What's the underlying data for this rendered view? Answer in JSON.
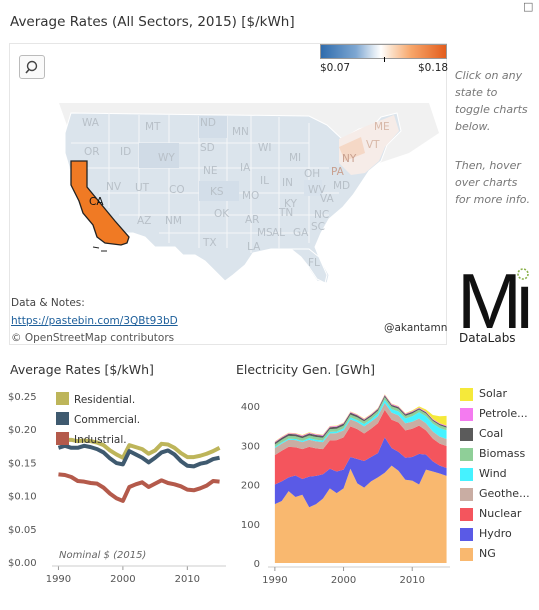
{
  "map": {
    "title": "Average Rates (All Sectors, 2015) [$/kWh]",
    "corner_mark": "□",
    "search_icon": "search-icon",
    "legend": {
      "min_label": "$0.07",
      "max_label": "$0.18",
      "low_color": "#2f6cad",
      "high_color": "#e35d1c"
    },
    "selected_state": "CA",
    "selected_color": "#f07a24",
    "states": [
      "WA",
      "MT",
      "ND",
      "MN",
      "ME",
      "OR",
      "ID",
      "SD",
      "WI",
      "VT",
      "WY",
      "NY",
      "NE",
      "IA",
      "MI",
      "PA",
      "CA",
      "NV",
      "UT",
      "CO",
      "IL",
      "IN",
      "OH",
      "MD",
      "KS",
      "MO",
      "WV",
      "VA",
      "KY",
      "AZ",
      "NM",
      "OK",
      "TN",
      "NC",
      "AR",
      "TX",
      "MS",
      "AL",
      "GA",
      "SC",
      "LA",
      "FL"
    ],
    "data_notes_label": "Data & Notes:",
    "data_link": "https://pastebin.com/3QBt93bD",
    "osm_credit": "© OpenStreetMap contributors",
    "handle": "@akantamn"
  },
  "sidebar": {
    "line1": [
      "Click on any",
      "state to",
      "toggle charts",
      "below."
    ],
    "line2": [
      "Then, hover",
      "over charts",
      "for more info."
    ]
  },
  "logo": {
    "main": "Mi",
    "sub": "DataLabs"
  },
  "chart_data": [
    {
      "type": "line",
      "title": "Average Rates [$/kWh]",
      "annotation": "Nominal $ (2015)",
      "x": [
        1990,
        1991,
        1992,
        1993,
        1994,
        1995,
        1996,
        1997,
        1998,
        1999,
        2000,
        2001,
        2002,
        2003,
        2004,
        2005,
        2006,
        2007,
        2008,
        2009,
        2010,
        2011,
        2012,
        2013,
        2014,
        2015
      ],
      "ylim": [
        0,
        0.25
      ],
      "yticks": [
        "$0.25",
        "$0.20",
        "$0.15",
        "$0.10",
        "$0.05",
        "$0.00"
      ],
      "yticks_values": [
        0.25,
        0.2,
        0.15,
        0.1,
        0.05,
        0.0
      ],
      "xticks": [
        1990,
        2000,
        2010
      ],
      "series": [
        {
          "name": "Residential.",
          "color": "#bdb55a",
          "values": [
            0.182,
            0.184,
            0.184,
            0.182,
            0.183,
            0.182,
            0.18,
            0.176,
            0.168,
            0.162,
            0.157,
            0.176,
            0.173,
            0.17,
            0.163,
            0.168,
            0.178,
            0.177,
            0.172,
            0.164,
            0.158,
            0.158,
            0.16,
            0.163,
            0.167,
            0.172
          ]
        },
        {
          "name": "Commercial.",
          "color": "#3f5a6f",
          "values": [
            0.172,
            0.175,
            0.172,
            0.172,
            0.175,
            0.173,
            0.17,
            0.165,
            0.156,
            0.149,
            0.147,
            0.167,
            0.162,
            0.157,
            0.15,
            0.157,
            0.165,
            0.168,
            0.162,
            0.152,
            0.145,
            0.144,
            0.148,
            0.15,
            0.155,
            0.157
          ]
        },
        {
          "name": "Industrial.",
          "color": "#b45a4b",
          "values": [
            0.132,
            0.131,
            0.128,
            0.122,
            0.121,
            0.119,
            0.118,
            0.112,
            0.103,
            0.096,
            0.092,
            0.113,
            0.117,
            0.12,
            0.113,
            0.118,
            0.123,
            0.119,
            0.117,
            0.114,
            0.109,
            0.108,
            0.111,
            0.115,
            0.122,
            0.121
          ]
        }
      ]
    },
    {
      "type": "area",
      "stacked": true,
      "title": "Electricity Gen. [GWh]",
      "x": [
        1990,
        1991,
        1992,
        1993,
        1994,
        1995,
        1996,
        1997,
        1998,
        1999,
        2000,
        2001,
        2002,
        2003,
        2004,
        2005,
        2006,
        2007,
        2008,
        2009,
        2010,
        2011,
        2012,
        2013,
        2014,
        2015
      ],
      "ylim": [
        0,
        420
      ],
      "yticks": [
        0,
        100,
        200,
        300,
        400
      ],
      "xticks": [
        1990,
        2000,
        2010
      ],
      "series": [
        {
          "name": "NG",
          "color": "#f9b86f",
          "values": [
            150,
            158,
            183,
            168,
            174,
            142,
            150,
            164,
            190,
            178,
            190,
            240,
            203,
            192,
            208,
            218,
            230,
            248,
            235,
            212,
            210,
            200,
            238,
            233,
            228,
            222
          ]
        },
        {
          "name": "Hydro",
          "color": "#5a5ae6",
          "values": [
            50,
            50,
            35,
            55,
            40,
            78,
            72,
            62,
            50,
            55,
            48,
            30,
            62,
            68,
            62,
            62,
            90,
            45,
            48,
            56,
            60,
            78,
            38,
            26,
            20,
            20
          ]
        },
        {
          "name": "Nuclear",
          "color": "#f4555d",
          "values": [
            75,
            78,
            78,
            72,
            76,
            76,
            70,
            64,
            72,
            80,
            82,
            78,
            76,
            70,
            72,
            76,
            70,
            72,
            75,
            70,
            72,
            72,
            62,
            58,
            56,
            56
          ]
        },
        {
          "name": "Geothe...",
          "color": "#c9ada3",
          "values": [
            18,
            18,
            18,
            18,
            18,
            18,
            18,
            18,
            18,
            18,
            18,
            18,
            18,
            18,
            18,
            18,
            18,
            18,
            18,
            18,
            18,
            18,
            18,
            18,
            18,
            18
          ]
        },
        {
          "name": "Wind",
          "color": "#45f2ff",
          "values": [
            3,
            3,
            3,
            3,
            3,
            4,
            4,
            4,
            4,
            4,
            5,
            5,
            5,
            6,
            6,
            7,
            8,
            9,
            10,
            12,
            14,
            16,
            18,
            20,
            22,
            22
          ]
        },
        {
          "name": "Biomass",
          "color": "#8fcf98",
          "values": [
            6,
            7,
            7,
            7,
            7,
            7,
            7,
            7,
            7,
            7,
            7,
            7,
            7,
            7,
            7,
            7,
            7,
            7,
            7,
            7,
            7,
            7,
            7,
            7,
            7,
            7
          ]
        },
        {
          "name": "Coal",
          "color": "#5b5b5b",
          "values": [
            5,
            5,
            5,
            5,
            5,
            5,
            5,
            5,
            5,
            5,
            5,
            5,
            5,
            4,
            4,
            4,
            4,
            4,
            4,
            4,
            4,
            3,
            3,
            3,
            3,
            3
          ]
        },
        {
          "name": "Petrole...",
          "color": "#f47bf0",
          "values": [
            2,
            2,
            2,
            2,
            2,
            2,
            2,
            2,
            2,
            2,
            2,
            2,
            2,
            2,
            2,
            2,
            2,
            2,
            2,
            2,
            2,
            2,
            2,
            2,
            2,
            2
          ]
        },
        {
          "name": "Solar",
          "color": "#f5e93a",
          "values": [
            1,
            1,
            1,
            1,
            1,
            1,
            1,
            1,
            1,
            1,
            1,
            1,
            1,
            1,
            1,
            1,
            1,
            1,
            1,
            1,
            2,
            3,
            5,
            10,
            18,
            25
          ]
        }
      ]
    }
  ]
}
